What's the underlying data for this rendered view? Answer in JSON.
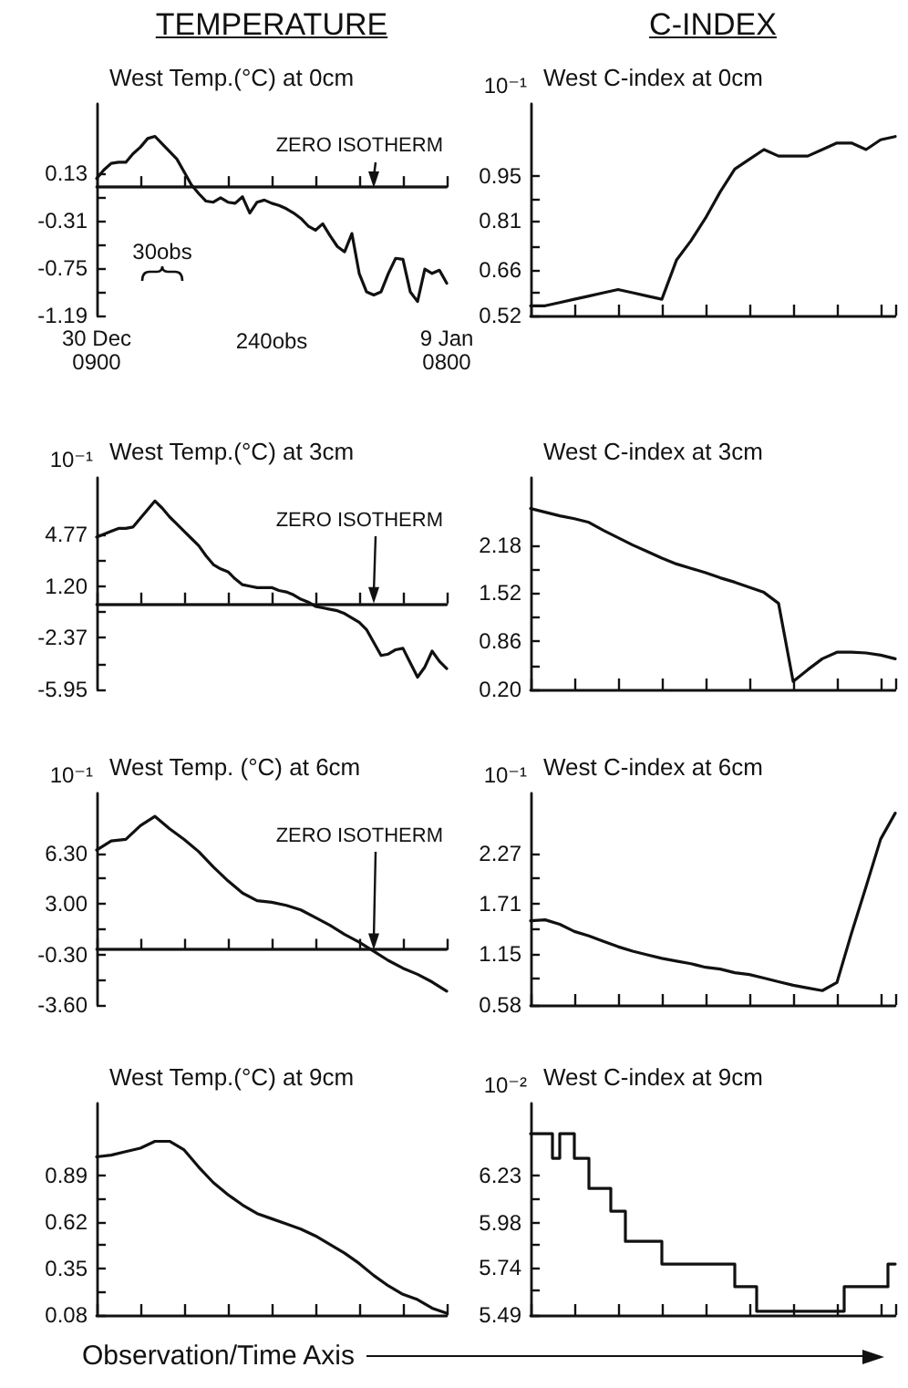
{
  "chart_data": [
    {
      "type": "line",
      "title": "TEMPERATURE",
      "subtitle": "West Temp.(°C) at 0cm",
      "categories": [
        "30 Dec\n0900",
        null,
        null,
        null,
        null,
        null,
        null,
        null,
        null,
        null,
        null,
        null,
        null,
        null,
        null,
        null,
        null,
        null,
        null,
        null,
        null,
        null,
        null,
        null,
        null,
        null,
        null,
        null,
        null,
        null,
        null,
        null,
        null,
        null,
        null,
        null,
        null,
        null,
        null,
        null,
        null,
        null,
        null,
        null,
        null,
        null,
        null,
        null,
        "9 Jan\n0800"
      ],
      "ylim": [
        -1.19,
        0.77
      ],
      "yticks": [
        0.13,
        {
          "value": -0.09,
          "label": null
        },
        -0.31,
        {
          "value": -0.53,
          "label": null
        },
        -0.75,
        {
          "value": -0.97,
          "label": null
        },
        -1.19
      ],
      "series": [
        {
          "color": "#111111",
          "values": [
            0.08,
            0.16,
            0.22,
            0.23,
            0.23,
            0.31,
            0.37,
            0.45,
            0.47,
            0.4,
            0.33,
            0.26,
            0.14,
            0.02,
            -0.06,
            -0.13,
            -0.14,
            -0.1,
            -0.14,
            -0.15,
            -0.09,
            -0.24,
            -0.14,
            -0.12,
            -0.15,
            -0.17,
            -0.2,
            -0.24,
            -0.29,
            -0.36,
            -0.4,
            -0.34,
            -0.45,
            -0.55,
            -0.6,
            -0.43,
            -0.8,
            -0.97,
            -1.0,
            -0.97,
            -0.8,
            -0.66,
            -0.67,
            -0.97,
            -1.06,
            -0.76,
            -0.8,
            -0.77,
            -0.89
          ]
        }
      ],
      "ref_lines": [
        {
          "axis": "y",
          "value": 0,
          "label": "ZERO ISOTHERM"
        }
      ],
      "annotations": [
        "30obs",
        "240obs"
      ]
    },
    {
      "type": "line",
      "title": "C-INDEX",
      "subtitle": "West C-index at 0cm",
      "ylabel": "10⁻¹",
      "tick_labels": "y",
      "categories": [
        null,
        null,
        null,
        null,
        null,
        null,
        null,
        null,
        null,
        null,
        null,
        null,
        null,
        null,
        null,
        null,
        null,
        null,
        null,
        null,
        null,
        null,
        null,
        null,
        null,
        null
      ],
      "ylim": [
        0.52,
        1.17
      ],
      "yticks": [
        0.95,
        {
          "value": 0.88,
          "label": null
        },
        0.81,
        {
          "value": 0.73,
          "label": null
        },
        0.66,
        {
          "value": 0.59,
          "label": null
        },
        0.52
      ],
      "series": [
        {
          "color": "#111111",
          "values": [
            0.55,
            0.55,
            0.56,
            0.57,
            0.58,
            0.59,
            0.6,
            0.59,
            0.58,
            0.57,
            0.69,
            0.75,
            0.82,
            0.9,
            0.97,
            1.0,
            1.03,
            1.01,
            1.01,
            1.01,
            1.03,
            1.05,
            1.05,
            1.03,
            1.06,
            1.07
          ]
        }
      ]
    },
    {
      "type": "line",
      "title": "West Temp.(°C) at 3cm",
      "ylabel": "10⁻¹",
      "tick_labels": "y",
      "categories": [
        null,
        null,
        null,
        null,
        null,
        null,
        null,
        null,
        null,
        null,
        null,
        null,
        null,
        null,
        null,
        null,
        null,
        null,
        null,
        null,
        null,
        null,
        null,
        null,
        null,
        null,
        null,
        null,
        null,
        null,
        null,
        null,
        null,
        null,
        null,
        null,
        null,
        null,
        null,
        null,
        null,
        null,
        null,
        null,
        null,
        null,
        null,
        null,
        null
      ],
      "ylim": [
        -5.95,
        8.7
      ],
      "yticks": [
        4.77,
        {
          "value": 2.99,
          "label": null
        },
        {
          "value": 1.2,
          "label": "1.20"
        },
        {
          "value": -0.59,
          "label": null
        },
        -2.37,
        {
          "value": -4.16,
          "label": null
        },
        -5.95
      ],
      "series": [
        {
          "color": "#111111",
          "values": [
            4.6,
            4.8,
            5.0,
            5.2,
            5.2,
            5.3,
            5.9,
            6.5,
            7.1,
            6.6,
            6.0,
            5.5,
            5.0,
            4.5,
            4.0,
            3.3,
            2.7,
            2.4,
            2.2,
            1.7,
            1.3,
            1.2,
            1.1,
            1.1,
            1.1,
            0.9,
            0.8,
            0.6,
            0.3,
            0.1,
            -0.2,
            -0.3,
            -0.4,
            -0.5,
            -0.7,
            -1.0,
            -1.3,
            -1.8,
            -2.7,
            -3.6,
            -3.5,
            -3.2,
            -3.1,
            -4.1,
            -5.1,
            -4.4,
            -3.3,
            -4.0,
            -4.5
          ]
        }
      ],
      "ref_lines": [
        {
          "axis": "y",
          "value": 0,
          "label": "ZERO ISOTHERM"
        }
      ]
    },
    {
      "type": "line",
      "title": "West C-index at 3cm",
      "tick_labels": "y",
      "categories": [
        null,
        null,
        null,
        null,
        null,
        null,
        null,
        null,
        null,
        null,
        null,
        null,
        null,
        null,
        null,
        null,
        null,
        null,
        null,
        null,
        null,
        null,
        null,
        null,
        null,
        null
      ],
      "ylim": [
        0.2,
        3.1
      ],
      "yticks": [
        2.18,
        {
          "value": 1.85,
          "label": null
        },
        1.52,
        {
          "value": 1.19,
          "label": null
        },
        0.86,
        {
          "value": 0.53,
          "label": null
        },
        {
          "value": 0.2,
          "label": "0.20"
        }
      ],
      "series": [
        {
          "color": "#111111",
          "values": [
            2.68,
            2.63,
            2.58,
            2.54,
            2.49,
            2.38,
            2.28,
            2.18,
            2.09,
            2.0,
            1.92,
            1.86,
            1.8,
            1.73,
            1.67,
            1.6,
            1.53,
            1.38,
            0.31,
            0.47,
            0.62,
            0.71,
            0.71,
            0.7,
            0.67,
            0.62
          ]
        }
      ]
    },
    {
      "type": "line",
      "title": "West Temp. (°C) at 6cm",
      "ylabel": "10⁻¹",
      "tick_labels": "y",
      "categories": [
        null,
        null,
        null,
        null,
        null,
        null,
        null,
        null,
        null,
        null,
        null,
        null,
        null,
        null,
        null,
        null,
        null,
        null,
        null,
        null,
        null,
        null,
        null,
        null,
        null
      ],
      "ylim": [
        -3.6,
        10.2
      ],
      "yticks": [
        {
          "value": 6.3,
          "label": "6.30"
        },
        {
          "value": 4.65,
          "label": null
        },
        {
          "value": 3,
          "label": "3.00"
        },
        {
          "value": 1.35,
          "label": null
        },
        {
          "value": -0.3,
          "label": "-0.30"
        },
        {
          "value": -1.95,
          "label": null
        },
        {
          "value": -3.6,
          "label": "-3.60"
        }
      ],
      "series": [
        {
          "color": "#111111",
          "values": [
            6.5,
            7.1,
            7.2,
            8.1,
            8.7,
            7.9,
            7.2,
            6.4,
            5.4,
            4.5,
            3.7,
            3.2,
            3.1,
            2.9,
            2.6,
            2.1,
            1.6,
            1.0,
            0.5,
            -0.1,
            -0.7,
            -1.2,
            -1.6,
            -2.1,
            -2.7
          ]
        }
      ],
      "ref_lines": [
        {
          "axis": "y",
          "value": 0,
          "label": "ZERO ISOTHERM"
        }
      ]
    },
    {
      "type": "line",
      "title": "West C-index at 6cm",
      "ylabel": "10⁻¹",
      "tick_labels": "y",
      "categories": [
        null,
        null,
        null,
        null,
        null,
        null,
        null,
        null,
        null,
        null,
        null,
        null,
        null,
        null,
        null,
        null,
        null,
        null,
        null,
        null,
        null,
        null,
        null,
        null,
        null,
        null
      ],
      "ylim": [
        0.58,
        2.94
      ],
      "yticks": [
        2.27,
        {
          "value": 1.99,
          "label": null
        },
        1.71,
        {
          "value": 1.43,
          "label": null
        },
        1.15,
        {
          "value": 0.87,
          "label": null
        },
        0.58
      ],
      "series": [
        {
          "color": "#111111",
          "values": [
            1.52,
            1.53,
            1.48,
            1.4,
            1.35,
            1.29,
            1.23,
            1.18,
            1.14,
            1.1,
            1.07,
            1.04,
            1.0,
            0.98,
            0.94,
            0.92,
            0.88,
            0.84,
            0.8,
            0.77,
            0.74,
            0.83,
            1.38,
            1.9,
            2.43,
            2.72
          ]
        }
      ]
    },
    {
      "type": "line",
      "title": "West Temp.(°C) at 9cm",
      "xlabel": "Observation/Time Axis",
      "tick_labels": "y",
      "categories": [
        null,
        null,
        null,
        null,
        null,
        null,
        null,
        null,
        null,
        null,
        null,
        null,
        null,
        null,
        null,
        null,
        null,
        null,
        null,
        null,
        null,
        null,
        null,
        null,
        null
      ],
      "ylim": [
        0.08,
        1.31
      ],
      "yticks": [
        0.89,
        {
          "value": 0.76,
          "label": null
        },
        0.62,
        {
          "value": 0.49,
          "label": null
        },
        0.35,
        {
          "value": 0.22,
          "label": null
        },
        0.08
      ],
      "series": [
        {
          "color": "#111111",
          "values": [
            1.0,
            1.01,
            1.03,
            1.05,
            1.09,
            1.09,
            1.04,
            0.94,
            0.85,
            0.78,
            0.72,
            0.67,
            0.64,
            0.61,
            0.58,
            0.54,
            0.49,
            0.44,
            0.38,
            0.31,
            0.25,
            0.2,
            0.17,
            0.12,
            0.09
          ]
        }
      ]
    },
    {
      "type": "step",
      "title": "West C-index at 9cm",
      "ylabel": "10⁻²",
      "tick_labels": "y",
      "categories": [
        null,
        null,
        null,
        null,
        null,
        null,
        null,
        null,
        null,
        null,
        null,
        null,
        null,
        null,
        null,
        null,
        null,
        null,
        null,
        null,
        null,
        null,
        null,
        null,
        null,
        null,
        null,
        null,
        null,
        null,
        null,
        null,
        null,
        null,
        null,
        null,
        null,
        null,
        null,
        null,
        null,
        null,
        null,
        null,
        null,
        null,
        null,
        null,
        null,
        null,
        null
      ],
      "ylim": [
        5.49,
        6.61
      ],
      "yticks": [
        6.23,
        {
          "value": 6.11,
          "label": null
        },
        5.98,
        {
          "value": 5.86,
          "label": null
        },
        5.74,
        {
          "value": 5.62,
          "label": null
        },
        5.49
      ],
      "series": [
        {
          "color": "#111111",
          "values": [
            6.45,
            6.45,
            6.45,
            6.32,
            6.45,
            6.45,
            6.32,
            6.32,
            6.16,
            6.16,
            6.16,
            6.04,
            6.04,
            5.88,
            5.88,
            5.88,
            5.88,
            5.88,
            5.76,
            5.76,
            5.76,
            5.76,
            5.76,
            5.76,
            5.76,
            5.76,
            5.76,
            5.76,
            5.64,
            5.64,
            5.64,
            5.51,
            5.51,
            5.51,
            5.51,
            5.51,
            5.51,
            5.51,
            5.51,
            5.51,
            5.51,
            5.51,
            5.51,
            5.64,
            5.64,
            5.64,
            5.64,
            5.64,
            5.64,
            5.76,
            5.76
          ]
        }
      ]
    }
  ]
}
